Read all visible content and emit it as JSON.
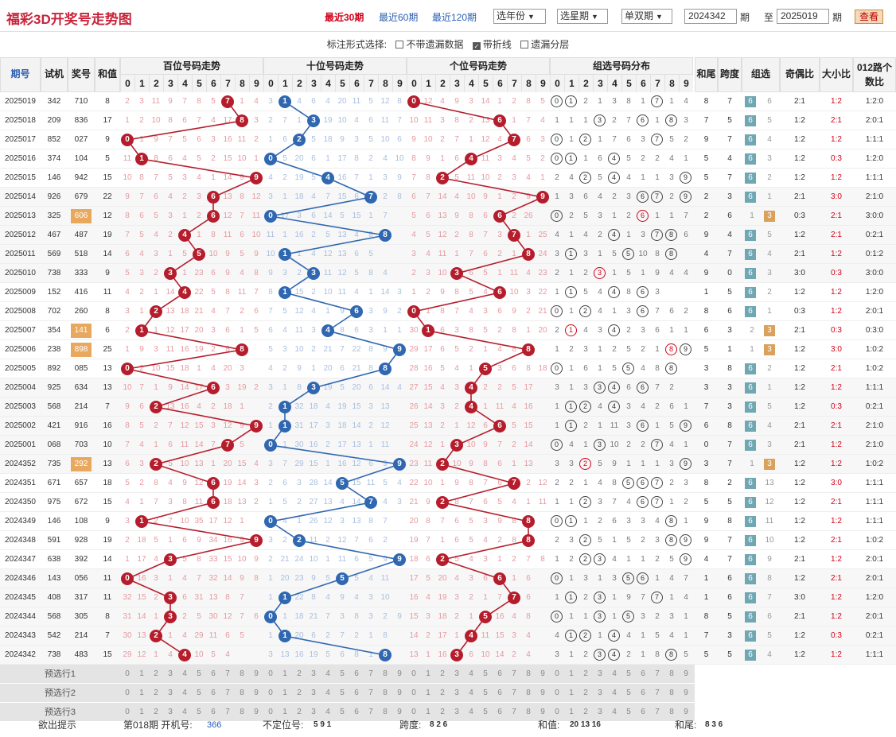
{
  "header": {
    "title": "福彩3D开奖号走势图",
    "ranges": [
      "最近30期",
      "最近60期",
      "最近120期"
    ],
    "year_select": "选年份",
    "week_select": "选星期",
    "parity_select": "单双期",
    "from_value": "2024342",
    "from_label": "期",
    "to_label": "至",
    "to_value": "2025019",
    "to_unit": "期",
    "view_button": "查看"
  },
  "options": {
    "label": "标注形式选择:",
    "items": [
      {
        "label": "不带遗漏数据",
        "checked": false
      },
      {
        "label": "带折线",
        "checked": true
      },
      {
        "label": "遗漏分层",
        "checked": false
      }
    ]
  },
  "columns": {
    "period": "期号",
    "trial": "试机",
    "prize": "奖号",
    "sum": "和值",
    "hundreds": "百位号码走势",
    "tens": "十位号码走势",
    "units": "个位号码走势",
    "group": "组选号码分布",
    "sum_tail": "和尾",
    "span": "跨度",
    "group_type": "组选",
    "odd_even": "奇偶比",
    "big_small": "大小比",
    "road": "012路个数比",
    "digits": [
      "0",
      "1",
      "2",
      "3",
      "4",
      "5",
      "6",
      "7",
      "8",
      "9"
    ]
  },
  "rows": [
    {
      "p": "2025019",
      "t": "342",
      "n": "710",
      "s": "8",
      "hm": "2 3 11 9 7 8 5 7 1 4",
      "tm": "3 1 4 6 4 20 11 5 12 8",
      "um": "0 12 4 9 3 14 1 2 8 5",
      "g": "0 1 2 1 3 8 1 7 1 4",
      "st": "8",
      "sp": "7",
      "gt": "6",
      "gm": "6",
      "oe": "2:1",
      "bs": "1:2",
      "rd": "1:2:0"
    },
    {
      "p": "2025018",
      "t": "209",
      "n": "836",
      "s": "17",
      "hm": "1 2 10 8 6 7 4 17 8 3",
      "tm": "2 7 1 3 19 10 4 6 11 7",
      "um": "10 11 3 8 2 13 6 1 7 4",
      "g": "1 1 1 3 2 7 6 1 8 3",
      "st": "7",
      "sp": "5",
      "gt": "6",
      "gm": "5",
      "oe": "1:2",
      "bs": "2:1",
      "rd": "2:0:1"
    },
    {
      "p": "2025017",
      "t": "852",
      "n": "027",
      "s": "9",
      "hm": "0 1 9 7 5 6 3 16 11 2",
      "tm": "1 6 2 5 18 9 3 5 10 6",
      "um": "9 10 2 7 1 12 4 7 6 3",
      "g": "0 1 2 1 7 6 3 7 5 2",
      "st": "9",
      "sp": "7",
      "gt": "6",
      "gm": "4",
      "oe": "1:2",
      "bs": "1:2",
      "rd": "1:1:1"
    },
    {
      "p": "2025016",
      "t": "374",
      "n": "104",
      "s": "5",
      "hm": "11 1 8 6 4 5 2 15 10 1",
      "tm": "0 5 20 6 1 17 8 2 4 10",
      "um": "8 9 1 6 4 11 3 4 5 2",
      "g": "0 1 1 6 4 5 2 2 4 1",
      "st": "5",
      "sp": "4",
      "gt": "6",
      "gm": "3",
      "oe": "1:2",
      "bs": "0:3",
      "rd": "1:2:0"
    },
    {
      "p": "2025015",
      "t": "146",
      "n": "942",
      "s": "15",
      "hm": "10 8 7 5 3 4 1 14 9 9",
      "tm": "4 2 19 5 4 16 7 1 3 9",
      "um": "7 8 2 5 11 10 2 3 4 1",
      "g": "2 4 2 5 4 4 1 1 3 9",
      "st": "5",
      "sp": "7",
      "gt": "6",
      "gm": "2",
      "oe": "1:2",
      "bs": "1:2",
      "rd": "1:1:1"
    },
    {
      "p": "2025014",
      "t": "926",
      "n": "679",
      "s": "22",
      "hm": "9 7 6 4 2 3 6 13 8 12",
      "tm": "3 1 18 4 7 15 6 7 2 8",
      "um": "6 7 14 4 10 9 1 2 9 9",
      "g": "1 3 6 4 2 3 6 7 2 9",
      "st": "2",
      "sp": "3",
      "gt": "6",
      "gm": "1",
      "oe": "2:1",
      "bs": "3:0",
      "rd": "2:1:0"
    },
    {
      "p": "2025013",
      "t": "325",
      "n": "606",
      "s": "12",
      "hm": "8 6 5 3 1 2 6 12 7 11",
      "tm": "0 17 3 6 14 5 15 1 7",
      "um": "5 6 13 9 8 6 1 2 26",
      "g": "0 2 5 3 1 2 6 1 1 7",
      "st": "2",
      "sp": "6",
      "gt": "1",
      "gm": "3",
      "oe": "0:3",
      "bs": "2:1",
      "rd": "3:0:0",
      "b3": true
    },
    {
      "p": "2025012",
      "t": "467",
      "n": "487",
      "s": "19",
      "hm": "7 5 4 2 4 1 8 11 6 10",
      "tm": "11 1 16 2 5 13 4 8 6",
      "um": "4 5 12 2 8 7 3 7 1 25",
      "g": "4 1 4 2 4 1 3 7 8 6",
      "st": "9",
      "sp": "4",
      "gt": "6",
      "gm": "5",
      "oe": "1:2",
      "bs": "2:1",
      "rd": "0:2:1"
    },
    {
      "p": "2025011",
      "t": "569",
      "n": "518",
      "s": "14",
      "hm": "6 4 3 1 5 7 10 9 5 9",
      "tm": "10 1 1 4 12 13 6 5",
      "um": "3 4 11 1 7 6 2 1 8 24",
      "g": "3 1 3 1 5 2 10 8 5",
      "st": "4",
      "sp": "7",
      "gt": "6",
      "gm": "4",
      "oe": "2:1",
      "bs": "1:2",
      "rd": "0:1:2"
    },
    {
      "p": "2025010",
      "t": "738",
      "n": "333",
      "s": "9",
      "hm": "5 3 2 3 1 23 6 9 4 8",
      "tm": "9 3 2 14 11 12 5 8 4",
      "um": "2 3 10 3 6 5 1 11 4 23",
      "g": "2 1 2 3 1 5 1 9 4 4",
      "st": "9",
      "sp": "0",
      "gt": "1",
      "gm": "3",
      "oe": "3:0",
      "bs": "0:3",
      "rd": "3:0:0"
    },
    {
      "p": "2025009",
      "t": "152",
      "n": "416",
      "s": "11",
      "hm": "4 2 1 14 4 22 5 8 11 7",
      "tm": "8 1 15 2 10 11 4 1 14 3",
      "um": "1 2 9 8 5 4 6 10 3 22",
      "g": "1 1 5 4 6 8 3 3",
      "st": "1",
      "sp": "5",
      "gt": "6",
      "gm": "2",
      "oe": "1:2",
      "bs": "1:2",
      "rd": "1:2:0"
    },
    {
      "p": "2025008",
      "t": "702",
      "n": "260",
      "s": "8",
      "hm": "3 1 2 13 18 21 4 7 2 6",
      "tm": "7 5 12 4 1 9 6 3 9 2",
      "um": "0 1 8 7 4 3 6 9 2 21",
      "g": "0 1 2 4 1 3 6 7 6 2",
      "st": "8",
      "sp": "6",
      "gt": "6",
      "gm": "1",
      "oe": "0:3",
      "bs": "1:2",
      "rd": "2:0:1"
    },
    {
      "p": "2025007",
      "t": "354",
      "n": "141",
      "s": "6",
      "hm": "2 1 1 12 17 20 3 6 1 5",
      "tm": "6 4 11 3 4 8 6 3 1 1",
      "um": "30 1 6 3 8 5 2 8 1 20",
      "g": "2 1 4 3 4 2 3 6 1 1",
      "st": "6",
      "sp": "3",
      "gt": "2",
      "gm": "3",
      "oe": "2:1",
      "bs": "0:3",
      "rd": "0:3:0",
      "b3": true
    },
    {
      "p": "2025006",
      "t": "238",
      "n": "898",
      "s": "25",
      "hm": "1 9 3 11 16 19 2 8 4",
      "tm": "5 3 10 2 21 7 22 8 9",
      "um": "29 17 6 5 2 1 4 8 19",
      "g": "1 2 3 1 2 5 2 1 8 9",
      "st": "5",
      "sp": "1",
      "gt": "1",
      "gm": "3",
      "oe": "1:2",
      "bs": "3:0",
      "rd": "1:0:2",
      "b3": true
    },
    {
      "p": "2025005",
      "t": "892",
      "n": "085",
      "s": "13",
      "hm": "0 2 10 15 18 1 4 20 3",
      "tm": "4 2 9 1 20 6 21 8",
      "um": "28 16 5 4 1 5 3 6 8 18",
      "g": "0 1 6 1 5 1 4 8 3",
      "st": "3",
      "sp": "8",
      "gt": "6",
      "gm": "2",
      "oe": "1:2",
      "bs": "2:1",
      "rd": "1:0:2"
    },
    {
      "p": "2025004",
      "t": "925",
      "n": "634",
      "s": "13",
      "hm": "10 7 1 9 14 17 6 3 19 2",
      "tm": "3 1 8 3 19 5 20 6 14 4",
      "um": "27 15 4 3 4 2 2 5 17",
      "g": "3 1 3 4 5 6 3 7 2",
      "st": "3",
      "sp": "3",
      "gt": "6",
      "gm": "1",
      "oe": "1:2",
      "bs": "1:2",
      "rd": "1:1:1"
    },
    {
      "p": "2025003",
      "t": "568",
      "n": "214",
      "s": "7",
      "hm": "9 6 2 13 16 4 2 18 1",
      "tm": "2 1 32 18 4 19 15 3 13",
      "um": "26 14 3 2 4 1 11 4 16",
      "g": "1 2 2 4 1 3 4 2 6 1",
      "st": "7",
      "sp": "3",
      "gt": "6",
      "gm": "5",
      "oe": "1:2",
      "bs": "0:3",
      "rd": "0:2:1"
    },
    {
      "p": "2025002",
      "t": "421",
      "n": "916",
      "s": "16",
      "hm": "8 5 2 7 12 15 3 12 9",
      "tm": "1 6 31 17 3 18 14 2 12",
      "um": "25 13 2 1 12 6 3 5 15",
      "g": "1 1 2 1 11 3 6 1 5 9",
      "st": "6",
      "sp": "8",
      "gt": "6",
      "gm": "4",
      "oe": "2:1",
      "bs": "2:1",
      "rd": "2:1:0"
    },
    {
      "p": "2025001",
      "t": "068",
      "n": "703",
      "s": "10",
      "hm": "7 4 1 6 11 14 7 16 5",
      "tm": "0 1 30 16 2 17 13 1 11",
      "um": "24 12 1 3 10 9 7 2 14",
      "g": "0 4 1 3 10 2 2 7 4 1",
      "st": "0",
      "sp": "7",
      "gt": "6",
      "gm": "3",
      "oe": "2:1",
      "bs": "1:2",
      "rd": "2:1:0"
    },
    {
      "p": "2024352",
      "t": "735",
      "n": "292",
      "s": "13",
      "hm": "6 3 2 5 10 13 1 20 15 4",
      "tm": "3 7 29 15 1 16 12 6 9",
      "um": "23 11 2 10 9 8 6 1 13",
      "g": "3 3 2 5 9 1 1 1 3 9",
      "st": "3",
      "sp": "7",
      "gt": "1",
      "gm": "3",
      "oe": "1:2",
      "bs": "1:2",
      "rd": "1:0:2",
      "b3": true
    },
    {
      "p": "2024351",
      "t": "671",
      "n": "657",
      "s": "18",
      "hm": "5 2 8 4 9 12 6 19 14 3",
      "tm": "2 6 3 28 14 5 15 11 5 4",
      "um": "22 10 1 9 8 7 6 7 2 12",
      "g": "2 2 1 4 8 5 6 7 2 3",
      "st": "8",
      "sp": "2",
      "gt": "6",
      "gm": "13",
      "oe": "1:2",
      "bs": "3:0",
      "rd": "1:1:1"
    },
    {
      "p": "2024350",
      "t": "975",
      "n": "672",
      "s": "15",
      "hm": "4 1 7 3 8 11 6 18 13 2",
      "tm": "1 5 2 27 13 4 14 7 4 3",
      "um": "21 9 2 8 7 6 5 4 1 11",
      "g": "1 1 2 3 7 4 6 7 1 2",
      "st": "5",
      "sp": "5",
      "gt": "6",
      "gm": "12",
      "oe": "1:2",
      "bs": "2:1",
      "rd": "1:1:1"
    },
    {
      "p": "2024349",
      "t": "146",
      "n": "108",
      "s": "9",
      "hm": "3 1 2 7 10 35 17 12 1",
      "tm": "0 4 1 26 12 3 13 8 7",
      "um": "20 8 7 6 5 3 9 8 10",
      "g": "0 1 1 2 6 3 3 4 8 1",
      "st": "9",
      "sp": "8",
      "gt": "6",
      "gm": "11",
      "oe": "1:2",
      "bs": "1:2",
      "rd": "1:1:1"
    },
    {
      "p": "2024348",
      "t": "591",
      "n": "928",
      "s": "19",
      "hm": "2 18 5 1 6 9 34 16 9",
      "tm": "3 2 25 11 2 12 7 6 2",
      "um": "19 7 1 6 5 4 2 8 9",
      "g": "2 3 2 5 1 5 2 3 8 9",
      "st": "9",
      "sp": "7",
      "gt": "6",
      "gm": "10",
      "oe": "1:2",
      "bs": "2:1",
      "rd": "1:0:2"
    },
    {
      "p": "2024347",
      "t": "638",
      "n": "392",
      "s": "14",
      "hm": "1 17 4 3 5 8 33 15 10 9",
      "tm": "2 21 24 10 1 11 6 5 9",
      "um": "18 6 2 5 4 3 1 2 7 8",
      "g": "1 2 2 3 4 1 1 2 5 9",
      "st": "4",
      "sp": "7",
      "gt": "6",
      "gm": "9",
      "oe": "2:1",
      "bs": "1:2",
      "rd": "2:0:1"
    },
    {
      "p": "2024346",
      "t": "143",
      "n": "056",
      "s": "11",
      "hm": "0 16 3 1 4 7 32 14 9 8",
      "tm": "1 20 23 9 5 10 5 4 11",
      "um": "17 5 20 4 3 6 2 1 6",
      "g": "0 1 3 1 3 5 6 1 4 7",
      "st": "1",
      "sp": "6",
      "gt": "6",
      "gm": "8",
      "oe": "1:2",
      "bs": "2:1",
      "rd": "2:0:1"
    },
    {
      "p": "2024345",
      "t": "408",
      "n": "317",
      "s": "11",
      "hm": "32 15 2 3 6 31 13 8 7",
      "tm": "1 19 22 8 4 9 4 3 10",
      "um": "16 4 19 3 2 1 7 5 6",
      "g": "1 1 2 2 1 9 7 2 1 4",
      "st": "1",
      "sp": "6",
      "gt": "6",
      "gm": "7",
      "oe": "3:0",
      "bs": "1:2",
      "rd": "1:2:0"
    },
    {
      "p": "2024344",
      "t": "568",
      "n": "305",
      "s": "8",
      "hm": "31 14 1 3 2 5 30 12 7 6",
      "tm": "0 1 18 21 7 3 8 3 2 9",
      "um": "15 3 18 2 1 5 16 4 8",
      "g": "0 1 1 3 1 5 3 2 3 1",
      "st": "8",
      "sp": "5",
      "gt": "6",
      "gm": "6",
      "oe": "2:1",
      "bs": "1:2",
      "rd": "2:0:1"
    },
    {
      "p": "2024343",
      "t": "542",
      "n": "214",
      "s": "7",
      "hm": "30 13 2 1 4 29 11 6 5",
      "tm": "1 17 20 6 2 7 2 1 8",
      "um": "14 2 17 1 4 11 15 3 4",
      "g": "4 1 2 1 4 4 1 5 4 1",
      "st": "7",
      "sp": "3",
      "gt": "6",
      "gm": "5",
      "oe": "1:2",
      "bs": "0:3",
      "rd": "0:2:1"
    },
    {
      "p": "2024342",
      "t": "738",
      "n": "483",
      "s": "15",
      "hm": "29 12 1 4 28 10 5 4",
      "tm": "3 13 16 19 5 6 8 1",
      "um": "13 1 16 3 6 10 14 2 4",
      "g": "3 1 2 3 4 2 1 8 1 5",
      "st": "5",
      "sp": "5",
      "gt": "6",
      "gm": "4",
      "oe": "1:2",
      "bs": "1:2",
      "rd": "1:1:1"
    }
  ],
  "preselect": [
    "预选行1",
    "预选行2",
    "预选行3"
  ],
  "footer": {
    "hint": "欲出提示",
    "issue": "第018期 开机号:",
    "issue_val": "366",
    "nopos": "不定位号:",
    "nopos_val": "5 9 1",
    "span": "跨度:",
    "span_val": "8 2 6",
    "sum": "和值:",
    "sum_val": "20 13 16",
    "tail": "和尾:",
    "tail_val": "8 3 6"
  },
  "colors": {
    "red": "#b61d2c",
    "blue": "#2f67b1",
    "accent": "#c8243a",
    "group6": "#6fa7b3",
    "group3": "#d9a15c"
  }
}
